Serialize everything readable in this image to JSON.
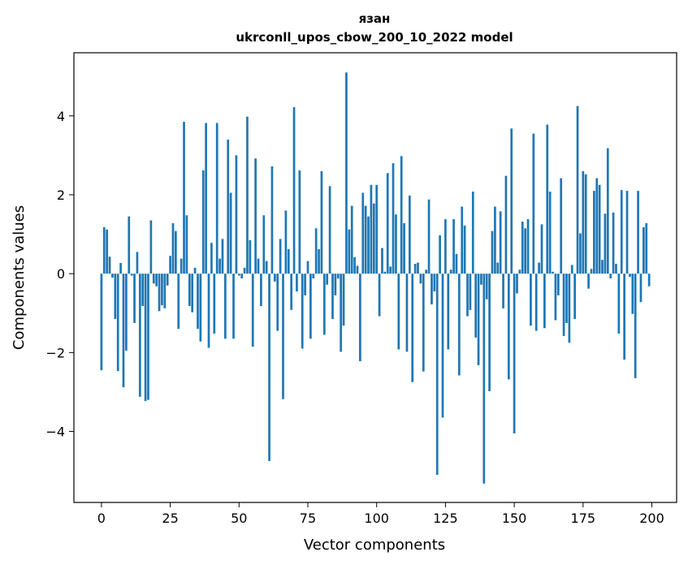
{
  "chart_data": {
    "type": "bar",
    "title": "язан",
    "subtitle": "ukrconll_upos_cbow_200_10_2022 model",
    "xlabel": "Vector components",
    "ylabel": "Components values",
    "xlim": [
      -10,
      209
    ],
    "ylim": [
      -5.8,
      5.6
    ],
    "xticks": [
      0,
      25,
      50,
      75,
      100,
      125,
      150,
      175,
      200
    ],
    "yticks": [
      -4,
      -2,
      0,
      2,
      4
    ],
    "ytick_labels": [
      "−4",
      "−2",
      "0",
      "2",
      "4"
    ],
    "grid": false,
    "bar_color": "#1f77b4",
    "x": [
      0,
      1,
      2,
      3,
      4,
      5,
      6,
      7,
      8,
      9,
      10,
      11,
      12,
      13,
      14,
      15,
      16,
      17,
      18,
      19,
      20,
      21,
      22,
      23,
      24,
      25,
      26,
      27,
      28,
      29,
      30,
      31,
      32,
      33,
      34,
      35,
      36,
      37,
      38,
      39,
      40,
      41,
      42,
      43,
      44,
      45,
      46,
      47,
      48,
      49,
      50,
      51,
      52,
      53,
      54,
      55,
      56,
      57,
      58,
      59,
      60,
      61,
      62,
      63,
      64,
      65,
      66,
      67,
      68,
      69,
      70,
      71,
      72,
      73,
      74,
      75,
      76,
      77,
      78,
      79,
      80,
      81,
      82,
      83,
      84,
      85,
      86,
      87,
      88,
      89,
      90,
      91,
      92,
      93,
      94,
      95,
      96,
      97,
      98,
      99,
      100,
      101,
      102,
      103,
      104,
      105,
      106,
      107,
      108,
      109,
      110,
      111,
      112,
      113,
      114,
      115,
      116,
      117,
      118,
      119,
      120,
      121,
      122,
      123,
      124,
      125,
      126,
      127,
      128,
      129,
      130,
      131,
      132,
      133,
      134,
      135,
      136,
      137,
      138,
      139,
      140,
      141,
      142,
      143,
      144,
      145,
      146,
      147,
      148,
      149,
      150,
      151,
      152,
      153,
      154,
      155,
      156,
      157,
      158,
      159,
      160,
      161,
      162,
      163,
      164,
      165,
      166,
      167,
      168,
      169,
      170,
      171,
      172,
      173,
      174,
      175,
      176,
      177,
      178,
      179,
      180,
      181,
      182,
      183,
      184,
      185,
      186,
      187,
      188,
      189,
      190,
      191,
      192,
      193,
      194,
      195,
      196,
      197,
      198,
      199
    ],
    "values": [
      -2.45,
      1.18,
      1.12,
      0.43,
      -0.1,
      -1.15,
      -2.47,
      0.27,
      -2.88,
      -1.95,
      1.45,
      -0.05,
      -1.25,
      0.55,
      -3.12,
      -0.82,
      -3.23,
      -3.2,
      1.35,
      -0.25,
      -0.32,
      -0.95,
      -0.8,
      -0.88,
      -0.3,
      0.45,
      1.28,
      1.08,
      -1.4,
      0.38,
      3.85,
      1.48,
      -0.82,
      -0.98,
      0.15,
      -1.4,
      -1.72,
      2.62,
      3.82,
      -1.88,
      0.78,
      -1.52,
      3.82,
      0.38,
      0.88,
      -1.65,
      3.4,
      2.05,
      -1.65,
      3.0,
      -0.05,
      -0.12,
      0.15,
      3.98,
      0.85,
      -1.85,
      2.92,
      0.38,
      -0.82,
      1.48,
      0.32,
      -4.75,
      2.72,
      -0.2,
      -1.45,
      0.88,
      -3.18,
      1.6,
      0.62,
      -0.92,
      4.22,
      -0.45,
      2.62,
      -1.9,
      -0.55,
      0.32,
      -1.65,
      -0.12,
      1.15,
      0.62,
      2.6,
      -1.55,
      -0.28,
      2.22,
      -1.15,
      -0.55,
      -0.12,
      -1.98,
      -1.32,
      5.1,
      1.12,
      1.72,
      0.42,
      0.2,
      -2.22,
      2.05,
      1.72,
      1.45,
      2.25,
      1.78,
      2.25,
      -1.08,
      0.65,
      0.05,
      2.55,
      0.18,
      2.8,
      1.5,
      -1.92,
      2.98,
      1.28,
      -1.98,
      1.98,
      -2.75,
      0.25,
      0.28,
      -0.25,
      -2.48,
      0.1,
      1.88,
      -0.78,
      -0.45,
      -5.1,
      0.97,
      -3.65,
      1.38,
      -1.92,
      0.1,
      1.38,
      0.5,
      -2.58,
      1.7,
      1.22,
      -1.08,
      -0.92,
      2.08,
      -1.62,
      -2.32,
      -0.28,
      -5.32,
      -0.65,
      -2.98,
      1.08,
      1.7,
      0.28,
      1.58,
      -0.88,
      2.48,
      -2.68,
      3.68,
      -4.05,
      -0.5,
      0.1,
      1.32,
      1.15,
      1.38,
      -1.32,
      3.55,
      -1.45,
      0.28,
      1.25,
      -1.38,
      3.78,
      2.08,
      0.05,
      -1.18,
      -0.55,
      2.42,
      -1.58,
      -1.25,
      -1.75,
      0.22,
      -1.15,
      4.25,
      1.02,
      2.6,
      2.52,
      -0.38,
      0.12,
      2.1,
      2.42,
      2.25,
      0.35,
      1.52,
      3.18,
      -0.12,
      1.55,
      0.25,
      -1.52,
      2.12,
      -2.18,
      2.1,
      -0.08,
      -1.02,
      -2.65,
      2.1,
      -0.72,
      1.18,
      1.28,
      -0.32
    ]
  }
}
